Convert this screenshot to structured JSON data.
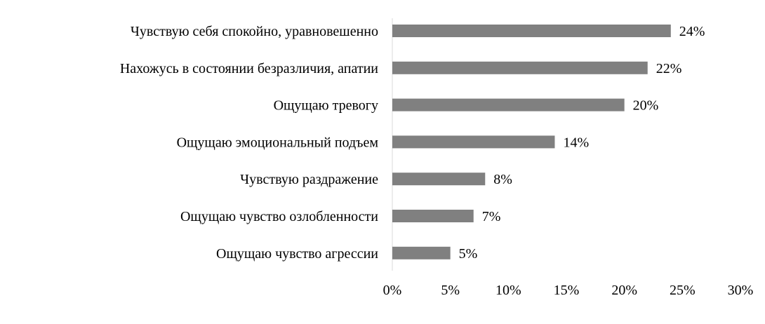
{
  "chart_data": {
    "type": "bar",
    "orientation": "horizontal",
    "categories": [
      "Чувствую себя спокойно, уравновешенно",
      "Нахожусь в состоянии безразличия, апатии",
      "Ощущаю тревогу",
      "Ощущаю эмоциональный подъем",
      "Чувствую раздражение",
      "Ощущаю чувство озлобленности",
      "Ощущаю чувство агрессии"
    ],
    "values": [
      24,
      22,
      20,
      14,
      8,
      7,
      5
    ],
    "value_labels": [
      "24%",
      "22%",
      "20%",
      "14%",
      "8%",
      "7%",
      "5%"
    ],
    "xlim": [
      0,
      30
    ],
    "x_ticks": [
      0,
      5,
      10,
      15,
      20,
      25,
      30
    ],
    "x_tick_labels": [
      "0%",
      "5%",
      "10%",
      "15%",
      "20%",
      "25%",
      "30%"
    ],
    "title": "",
    "xlabel": "",
    "ylabel": "",
    "grid": false,
    "legend": "none",
    "bar_color": "#808080",
    "axis_color": "#d9d9d9"
  }
}
